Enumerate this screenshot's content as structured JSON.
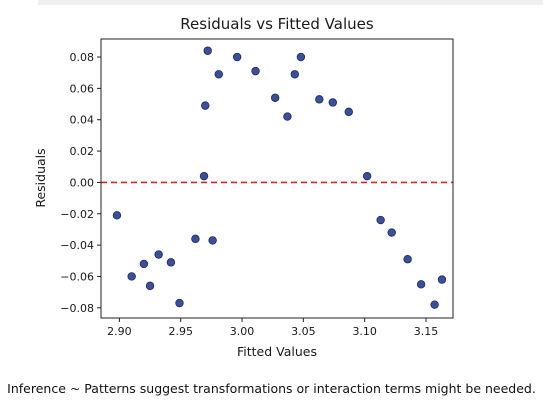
{
  "chart_data": {
    "type": "scatter",
    "title": "Residuals vs Fitted Values",
    "xlabel": "Fitted Values",
    "ylabel": "Residuals",
    "xlim": [
      2.885,
      3.172
    ],
    "ylim": [
      -0.0865,
      0.0915
    ],
    "xticks": [
      2.9,
      2.95,
      3.0,
      3.05,
      3.1,
      3.15
    ],
    "xtick_labels": [
      "2.90",
      "2.95",
      "3.00",
      "3.05",
      "3.10",
      "3.15"
    ],
    "yticks": [
      -0.08,
      -0.06,
      -0.04,
      -0.02,
      0.0,
      0.02,
      0.04,
      0.06,
      0.08
    ],
    "ytick_labels": [
      "−0.08",
      "−0.06",
      "−0.04",
      "−0.02",
      "0.00",
      "0.02",
      "0.04",
      "0.06",
      "0.08"
    ],
    "grid": false,
    "reference_line": {
      "y": 0,
      "style": "dashed",
      "color": "#d62728"
    },
    "marker_color": "#3b4f9a",
    "marker_edge_color": "#1f2a55",
    "points": [
      {
        "x": 2.898,
        "y": -0.021
      },
      {
        "x": 2.91,
        "y": -0.06
      },
      {
        "x": 2.92,
        "y": -0.052
      },
      {
        "x": 2.925,
        "y": -0.066
      },
      {
        "x": 2.932,
        "y": -0.046
      },
      {
        "x": 2.942,
        "y": -0.051
      },
      {
        "x": 2.949,
        "y": -0.077
      },
      {
        "x": 2.962,
        "y": -0.036
      },
      {
        "x": 2.969,
        "y": 0.004
      },
      {
        "x": 2.97,
        "y": 0.049
      },
      {
        "x": 2.972,
        "y": 0.084
      },
      {
        "x": 2.976,
        "y": -0.037
      },
      {
        "x": 2.981,
        "y": 0.069
      },
      {
        "x": 2.996,
        "y": 0.08
      },
      {
        "x": 3.011,
        "y": 0.071
      },
      {
        "x": 3.027,
        "y": 0.054
      },
      {
        "x": 3.037,
        "y": 0.042
      },
      {
        "x": 3.043,
        "y": 0.069
      },
      {
        "x": 3.048,
        "y": 0.08
      },
      {
        "x": 3.063,
        "y": 0.053
      },
      {
        "x": 3.074,
        "y": 0.051
      },
      {
        "x": 3.087,
        "y": 0.045
      },
      {
        "x": 3.102,
        "y": 0.004
      },
      {
        "x": 3.113,
        "y": -0.024
      },
      {
        "x": 3.122,
        "y": -0.032
      },
      {
        "x": 3.135,
        "y": -0.049
      },
      {
        "x": 3.146,
        "y": -0.065
      },
      {
        "x": 3.157,
        "y": -0.078
      },
      {
        "x": 3.163,
        "y": -0.062
      }
    ]
  },
  "caption": "Inference ~ Patterns suggest transformations or interaction terms might be needed."
}
